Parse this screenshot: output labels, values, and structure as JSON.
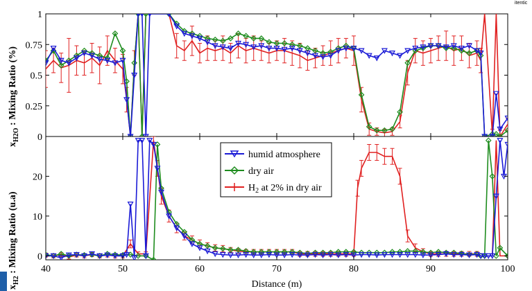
{
  "cropped_text": "itentic",
  "chart_data": [
    {
      "type": "line",
      "ylabel_main": "x",
      "ylabel_sub": "H2O",
      "ylabel_rest": " : Mixing Ratio (%)",
      "xlim": [
        40,
        100
      ],
      "ylim": [
        0,
        1
      ],
      "yticks": [
        0,
        0.25,
        0.5,
        0.75,
        1
      ],
      "ytick_labels": [
        "0",
        "0.25",
        "0.5",
        "0.75",
        "1"
      ],
      "grid": false,
      "series": [
        {
          "key": "humid",
          "color": "#1a1ad6",
          "marker": "triangle-down",
          "x": [
            40,
            41,
            42,
            43,
            44,
            45,
            46,
            47,
            48,
            49,
            50,
            50.5,
            51,
            51.5,
            52,
            52.5,
            53,
            53.5,
            56,
            57,
            58,
            59,
            60,
            61,
            62,
            63,
            64,
            65,
            66,
            67,
            68,
            69,
            70,
            71,
            72,
            73,
            74,
            75,
            76,
            77,
            78,
            79,
            80,
            81,
            82,
            83,
            84,
            85,
            86,
            87,
            88,
            89,
            90,
            91,
            92,
            93,
            94,
            95,
            96,
            96.5,
            97,
            98,
            98.5,
            99,
            100
          ],
          "y": [
            0.6,
            0.72,
            0.62,
            0.6,
            0.64,
            0.68,
            0.66,
            0.63,
            0.62,
            0.6,
            0.62,
            0.3,
            0,
            0.5,
            1,
            1,
            0,
            1,
            1,
            0.9,
            0.84,
            0.82,
            0.8,
            0.77,
            0.74,
            0.73,
            0.72,
            0.76,
            0.75,
            0.73,
            0.74,
            0.72,
            0.72,
            0.71,
            0.72,
            0.7,
            0.68,
            0.66,
            0.65,
            0.66,
            0.7,
            0.72,
            0.72,
            0.7,
            0.66,
            0.64,
            0.7,
            0.68,
            0.66,
            0.7,
            0.72,
            0.73,
            0.74,
            0.74,
            0.73,
            0.74,
            0.72,
            0.74,
            0.7,
            0.68,
            0,
            0,
            0.35,
            0.06,
            0.15
          ]
        },
        {
          "key": "dry",
          "color": "#1e8c1e",
          "marker": "diamond",
          "x": [
            40,
            41,
            42,
            43,
            44,
            45,
            46,
            47,
            48,
            49,
            50,
            50.5,
            51,
            51.5,
            52,
            52.5,
            53,
            56,
            57,
            58,
            59,
            60,
            61,
            62,
            63,
            64,
            65,
            66,
            67,
            68,
            69,
            70,
            71,
            72,
            73,
            74,
            75,
            76,
            77,
            78,
            79,
            80,
            81,
            82,
            83,
            84,
            85,
            86,
            87,
            88,
            89,
            90,
            91,
            92,
            93,
            94,
            95,
            96,
            96.5,
            97,
            98,
            98.5,
            99,
            100
          ],
          "y": [
            0.62,
            0.7,
            0.58,
            0.62,
            0.66,
            0.7,
            0.68,
            0.66,
            0.64,
            0.84,
            0.7,
            0.45,
            0,
            0.6,
            1,
            0,
            1,
            1,
            0.92,
            0.86,
            0.84,
            0.82,
            0.8,
            0.79,
            0.78,
            0.8,
            0.84,
            0.82,
            0.8,
            0.8,
            0.77,
            0.76,
            0.76,
            0.75,
            0.74,
            0.72,
            0.7,
            0.68,
            0.69,
            0.72,
            0.74,
            0.72,
            0.34,
            0.08,
            0.05,
            0.05,
            0.06,
            0.2,
            0.6,
            0.7,
            0.72,
            0.74,
            0.74,
            0.72,
            0.72,
            0.7,
            0.68,
            0.7,
            0.66,
            0,
            0.02,
            0.02,
            0,
            0.05
          ]
        },
        {
          "key": "h2",
          "color": "#e02020",
          "marker": "errorbar",
          "x": [
            40,
            41,
            42,
            43,
            44,
            45,
            46,
            47,
            48,
            49,
            50,
            50.5,
            51,
            51.5,
            52,
            52.5,
            53,
            56,
            57,
            58,
            59,
            60,
            61,
            62,
            63,
            64,
            65,
            66,
            67,
            68,
            69,
            70,
            71,
            72,
            73,
            74,
            75,
            76,
            77,
            78,
            79,
            80,
            81,
            82,
            83,
            84,
            85,
            86,
            87,
            88,
            89,
            90,
            91,
            92,
            93,
            94,
            95,
            96,
            96.5,
            97,
            98,
            98.5,
            99,
            100
          ],
          "y": [
            0.55,
            0.62,
            0.56,
            0.58,
            0.62,
            0.6,
            0.64,
            0.58,
            0.7,
            0.62,
            0.55,
            0.3,
            0,
            0.6,
            1,
            0,
            1,
            1,
            0.74,
            0.7,
            0.78,
            0.68,
            0.72,
            0.7,
            0.72,
            0.68,
            0.74,
            0.7,
            0.72,
            0.7,
            0.68,
            0.7,
            0.7,
            0.68,
            0.66,
            0.62,
            0.64,
            0.66,
            0.68,
            0.7,
            0.72,
            0.7,
            0.3,
            0.06,
            0.04,
            0.03,
            0.04,
            0.12,
            0.52,
            0.7,
            0.68,
            0.7,
            0.72,
            0.74,
            0.7,
            0.72,
            0.66,
            0.68,
            0.62,
            1,
            0.02,
            1,
            0,
            0.1
          ],
          "err": [
            0.15,
            0.1,
            0.12,
            0.22,
            0.12,
            0.1,
            0.12,
            0.15,
            0.12,
            0.1,
            0.12,
            0.1,
            0,
            0.1,
            0,
            0,
            0,
            0,
            0.1,
            0.08,
            0.12,
            0.08,
            0.1,
            0.08,
            0.1,
            0.08,
            0.1,
            0.1,
            0.1,
            0.08,
            0.08,
            0.08,
            0.1,
            0.1,
            0.1,
            0.08,
            0.08,
            0.08,
            0.1,
            0.1,
            0.08,
            0.12,
            0.1,
            0.05,
            0.03,
            0.03,
            0.03,
            0.05,
            0.1,
            0.1,
            0.1,
            0.1,
            0.1,
            0.12,
            0.12,
            0.1,
            0.1,
            0.1,
            0.1,
            0,
            0.04,
            0,
            0.05,
            0.05
          ]
        }
      ]
    },
    {
      "type": "line",
      "ylabel_main": "x",
      "ylabel_sub": "H2",
      "ylabel_rest": " : Mixing Ratio (u.a)",
      "xlabel": "Distance (m)",
      "xlim": [
        40,
        100
      ],
      "ylim": [
        -1,
        30
      ],
      "yticks": [
        0,
        10,
        20
      ],
      "ytick_labels": [
        "0",
        "10",
        "20"
      ],
      "xticks": [
        40,
        50,
        60,
        70,
        80,
        90,
        100
      ],
      "xtick_labels": [
        "40",
        "50",
        "60",
        "70",
        "80",
        "90",
        "100"
      ],
      "grid": false,
      "legend": {
        "placement": "top-center",
        "entries": [
          {
            "key": "humid",
            "label": "humid atmosphere"
          },
          {
            "key": "dry",
            "label": "dry air"
          },
          {
            "key": "h2",
            "label_main": "H",
            "label_sub": "2",
            "label_rest": " at 2% in dry air"
          }
        ]
      },
      "series": [
        {
          "key": "humid",
          "color": "#1a1ad6",
          "marker": "triangle-down",
          "x": [
            40,
            41,
            42,
            43,
            44,
            45,
            46,
            47,
            48,
            49,
            50,
            50.5,
            51,
            51.5,
            52,
            52.5,
            53,
            53.5,
            54,
            54.5,
            55,
            56,
            57,
            58,
            59,
            60,
            61,
            62,
            63,
            64,
            65,
            66,
            67,
            68,
            69,
            70,
            71,
            72,
            73,
            74,
            75,
            76,
            77,
            78,
            79,
            80,
            81,
            82,
            83,
            84,
            85,
            86,
            87,
            88,
            89,
            90,
            91,
            92,
            93,
            94,
            95,
            96,
            96.5,
            97,
            97.5,
            98,
            98.5,
            99,
            99.5,
            100
          ],
          "y": [
            0,
            0,
            -0.5,
            0.2,
            0.3,
            0,
            0.5,
            0,
            0.2,
            0,
            0,
            0.3,
            13,
            -0.5,
            29,
            29,
            0,
            29,
            28,
            22,
            16,
            10,
            7,
            5,
            3,
            2,
            1.2,
            0.5,
            0.3,
            0.2,
            0.2,
            0.3,
            0.2,
            0.2,
            0.3,
            0.2,
            0.2,
            0.3,
            0.2,
            0.2,
            0.3,
            0.2,
            0.3,
            0.2,
            0.3,
            0.2,
            0.3,
            0.3,
            0.2,
            0.3,
            0.3,
            0.3,
            0.3,
            0.3,
            0.2,
            0.2,
            0.3,
            0.5,
            0.3,
            0.3,
            0.2,
            0.3,
            0,
            0,
            0,
            0,
            15,
            29,
            20,
            28
          ]
        },
        {
          "key": "dry",
          "color": "#1e8c1e",
          "marker": "diamond",
          "x": [
            40,
            41,
            42,
            43,
            44,
            45,
            46,
            47,
            48,
            49,
            50,
            51,
            52,
            53,
            54,
            54.5,
            55,
            56,
            57,
            58,
            59,
            60,
            61,
            62,
            63,
            64,
            65,
            66,
            67,
            68,
            69,
            70,
            71,
            72,
            73,
            74,
            75,
            76,
            77,
            78,
            79,
            80,
            81,
            82,
            83,
            84,
            85,
            86,
            87,
            88,
            89,
            90,
            91,
            92,
            93,
            94,
            95,
            96,
            96.5,
            97,
            97.5,
            98,
            98.5,
            99,
            100
          ],
          "y": [
            0.3,
            0,
            0.5,
            0,
            0.3,
            0.2,
            0.3,
            0,
            0.5,
            0.3,
            0.2,
            0.3,
            0,
            0,
            -1,
            28,
            17,
            11,
            8,
            6,
            4,
            3,
            2.5,
            2,
            1.8,
            1.5,
            1.5,
            1.2,
            1,
            1,
            1,
            1,
            1,
            1,
            0.8,
            0.6,
            0.8,
            0.8,
            0.8,
            1,
            1,
            1,
            0.8,
            0.8,
            0.8,
            0.8,
            1,
            1,
            1.2,
            1.2,
            1,
            0.8,
            1,
            0.8,
            0.8,
            0.6,
            0.3,
            0.5,
            0,
            0,
            29,
            20,
            0,
            2,
            0
          ]
        },
        {
          "key": "h2",
          "color": "#e02020",
          "marker": "errorbar",
          "x": [
            40,
            41,
            42,
            43,
            44,
            45,
            46,
            47,
            48,
            49,
            50,
            51,
            52,
            53,
            54,
            54.5,
            55,
            56,
            57,
            58,
            59,
            60,
            61,
            62,
            63,
            64,
            65,
            66,
            67,
            68,
            69,
            70,
            71,
            72,
            73,
            74,
            75,
            76,
            77,
            78,
            79,
            80,
            80.5,
            81,
            82,
            83,
            84,
            85,
            86,
            87,
            88,
            89,
            90,
            91,
            92,
            93,
            94,
            95,
            96,
            96.5,
            97,
            98,
            98.5,
            99,
            100
          ],
          "y": [
            0.2,
            0,
            0.3,
            -0.3,
            0.2,
            0,
            0.3,
            0,
            0.2,
            0,
            0,
            3,
            0.5,
            0.5,
            29,
            22,
            15,
            10,
            7,
            5,
            4,
            3,
            2.5,
            2,
            1.8,
            1.5,
            1.2,
            1,
            1,
            1,
            1,
            1,
            1,
            1,
            0.5,
            0.5,
            0.5,
            0.5,
            0.5,
            0.5,
            0.5,
            0.5,
            17,
            22,
            26,
            26,
            25,
            25,
            20,
            5,
            2,
            1,
            0.5,
            0.5,
            0.5,
            0.5,
            0.5,
            0.5,
            0.5,
            0,
            0,
            0,
            29,
            0,
            0
          ],
          "err": [
            0.5,
            0.5,
            0.5,
            0.5,
            0.5,
            0.5,
            0.5,
            0.5,
            0.5,
            0.5,
            0.5,
            1,
            0.5,
            0.5,
            1,
            2,
            2,
            1.5,
            1.2,
            1,
            1,
            1,
            0.8,
            0.8,
            0.8,
            0.6,
            0.6,
            0.6,
            0.6,
            0.6,
            0.6,
            0.6,
            0.6,
            0.6,
            0.6,
            0.6,
            0.6,
            0.6,
            0.6,
            0.6,
            0.6,
            0.6,
            2,
            2,
            2,
            2,
            2,
            2,
            2,
            1.5,
            1,
            0.8,
            0.6,
            0.6,
            0.6,
            0.6,
            0.6,
            0.6,
            0.6,
            0,
            0,
            0,
            0,
            0,
            0
          ]
        }
      ]
    }
  ]
}
